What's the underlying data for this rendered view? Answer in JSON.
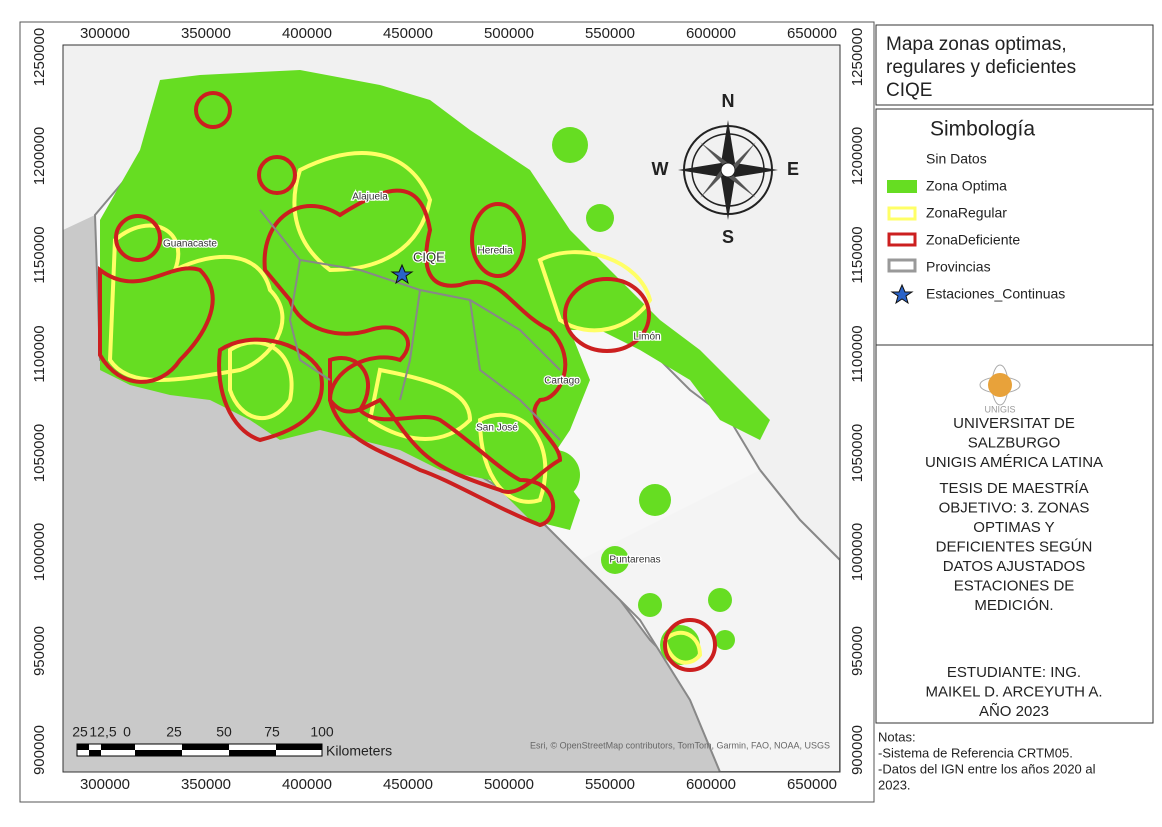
{
  "map": {
    "x_ticks": [
      "300000",
      "350000",
      "400000",
      "450000",
      "500000",
      "550000",
      "600000",
      "650000"
    ],
    "y_ticks": [
      "1250000",
      "1200000",
      "1150000",
      "1100000",
      "1050000",
      "1000000",
      "950000",
      "900000"
    ],
    "place_labels": [
      "Alajuela",
      "Guanacaste",
      "Heredia",
      "Limón",
      "Cartago",
      "San José",
      "Puntarenas"
    ],
    "station_label": "CIQE",
    "compass": {
      "north": "N",
      "south": "S",
      "east": "E",
      "west": "W"
    },
    "scale_bar": {
      "ticks": [
        "25",
        "12,5",
        "0",
        "25",
        "50",
        "75",
        "100"
      ],
      "unit": "Kilometers"
    },
    "attribution": "Esri, © OpenStreetMap contributors, TomTom, Garmin, FAO, NOAA, USGS"
  },
  "title": [
    "Mapa zonas optimas,",
    "regulares y deficientes",
    "CIQE"
  ],
  "legend": {
    "title": "Simbología",
    "items": [
      "Sin Datos",
      "Zona Optima",
      "ZonaRegular",
      "ZonaDeficiente",
      "Provincias",
      "Estaciones_Continuas"
    ]
  },
  "logo_text": "UNIGIS",
  "institution": [
    "UNIVERSITAT DE",
    "SALZBURGO",
    "UNIGIS AMÉRICA LATINA"
  ],
  "thesis": [
    "TESIS DE MAESTRÍA",
    "OBJETIVO: 3. ZONAS",
    "OPTIMAS Y",
    "DEFICIENTES SEGÚN",
    "DATOS AJUSTADOS",
    "ESTACIONES DE",
    "MEDICIÓN."
  ],
  "student": [
    "ESTUDIANTE: ING.",
    "MAIKEL D. ARCEYUTH A.",
    "AÑO 2023"
  ],
  "notes": [
    "Notas:",
    "-Sistema de Referencia CRTM05.",
    "-Datos del IGN entre los años 2020 al",
    "2023."
  ]
}
